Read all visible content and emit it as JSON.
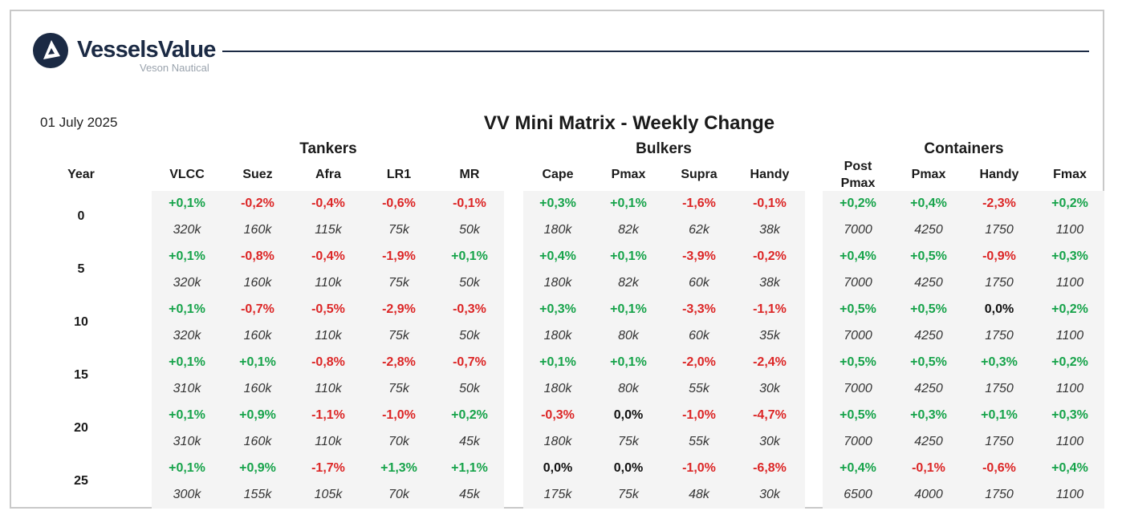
{
  "brand": {
    "name": "VesselsValue",
    "sub": "Veson Nautical"
  },
  "date": "01 July 2025",
  "title": "VV Mini Matrix - Weekly Change",
  "year_label": "Year",
  "groups": [
    {
      "name": "Tankers",
      "columns": [
        "VLCC",
        "Suez",
        "Afra",
        "LR1",
        "MR"
      ]
    },
    {
      "name": "Bulkers",
      "columns": [
        "Cape",
        "Pmax",
        "Supra",
        "Handy"
      ]
    },
    {
      "name": "Containers",
      "columns": [
        "Post Pmax",
        "Pmax",
        "Handy",
        "Fmax"
      ]
    }
  ],
  "rows": [
    {
      "year": "0",
      "changes": [
        "+0,1%",
        "-0,2%",
        "-0,4%",
        "-0,6%",
        "-0,1%",
        "+0,3%",
        "+0,1%",
        "-1,6%",
        "-0,1%",
        "+0,2%",
        "+0,4%",
        "-2,3%",
        "+0,2%"
      ],
      "sizes": [
        "320k",
        "160k",
        "115k",
        "75k",
        "50k",
        "180k",
        "82k",
        "62k",
        "38k",
        "7000",
        "4250",
        "1750",
        "1100"
      ]
    },
    {
      "year": "5",
      "changes": [
        "+0,1%",
        "-0,8%",
        "-0,4%",
        "-1,9%",
        "+0,1%",
        "+0,4%",
        "+0,1%",
        "-3,9%",
        "-0,2%",
        "+0,4%",
        "+0,5%",
        "-0,9%",
        "+0,3%"
      ],
      "sizes": [
        "320k",
        "160k",
        "110k",
        "75k",
        "50k",
        "180k",
        "82k",
        "60k",
        "38k",
        "7000",
        "4250",
        "1750",
        "1100"
      ]
    },
    {
      "year": "10",
      "changes": [
        "+0,1%",
        "-0,7%",
        "-0,5%",
        "-2,9%",
        "-0,3%",
        "+0,3%",
        "+0,1%",
        "-3,3%",
        "-1,1%",
        "+0,5%",
        "+0,5%",
        "0,0%",
        "+0,2%"
      ],
      "sizes": [
        "320k",
        "160k",
        "110k",
        "75k",
        "50k",
        "180k",
        "80k",
        "60k",
        "35k",
        "7000",
        "4250",
        "1750",
        "1100"
      ]
    },
    {
      "year": "15",
      "changes": [
        "+0,1%",
        "+0,1%",
        "-0,8%",
        "-2,8%",
        "-0,7%",
        "+0,1%",
        "+0,1%",
        "-2,0%",
        "-2,4%",
        "+0,5%",
        "+0,5%",
        "+0,3%",
        "+0,2%"
      ],
      "sizes": [
        "310k",
        "160k",
        "110k",
        "75k",
        "50k",
        "180k",
        "80k",
        "55k",
        "30k",
        "7000",
        "4250",
        "1750",
        "1100"
      ]
    },
    {
      "year": "20",
      "changes": [
        "+0,1%",
        "+0,9%",
        "-1,1%",
        "-1,0%",
        "+0,2%",
        "-0,3%",
        "0,0%",
        "-1,0%",
        "-4,7%",
        "+0,5%",
        "+0,3%",
        "+0,1%",
        "+0,3%"
      ],
      "sizes": [
        "310k",
        "160k",
        "110k",
        "70k",
        "45k",
        "180k",
        "75k",
        "55k",
        "30k",
        "7000",
        "4250",
        "1750",
        "1100"
      ]
    },
    {
      "year": "25",
      "changes": [
        "+0,1%",
        "+0,9%",
        "-1,7%",
        "+1,3%",
        "+1,1%",
        "0,0%",
        "0,0%",
        "-1,0%",
        "-6,8%",
        "+0,4%",
        "-0,1%",
        "-0,6%",
        "+0,4%"
      ],
      "sizes": [
        "300k",
        "155k",
        "105k",
        "70k",
        "45k",
        "175k",
        "75k",
        "48k",
        "30k",
        "6500",
        "4000",
        "1750",
        "1100"
      ]
    }
  ],
  "colors": {
    "positive": "#16a34a",
    "negative": "#dc2626",
    "navy": "#1b2a44",
    "band": "#f4f4f4"
  }
}
